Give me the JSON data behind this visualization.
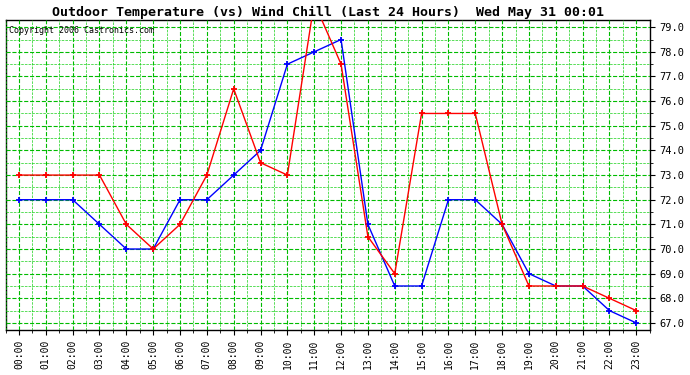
{
  "title": "Outdoor Temperature (vs) Wind Chill (Last 24 Hours)  Wed May 31 00:01",
  "copyright": "Copyright 2006 Castronics.com",
  "hours": [
    "00:00",
    "01:00",
    "02:00",
    "03:00",
    "04:00",
    "05:00",
    "06:00",
    "07:00",
    "08:00",
    "09:00",
    "10:00",
    "11:00",
    "12:00",
    "13:00",
    "14:00",
    "15:00",
    "16:00",
    "17:00",
    "18:00",
    "19:00",
    "20:00",
    "21:00",
    "22:00",
    "23:00"
  ],
  "temp": [
    72.0,
    72.0,
    72.0,
    71.0,
    70.0,
    70.0,
    72.0,
    72.0,
    73.0,
    74.0,
    77.5,
    78.0,
    78.5,
    71.0,
    68.5,
    68.5,
    72.0,
    72.0,
    71.0,
    69.0,
    68.5,
    68.5,
    67.5,
    67.0
  ],
  "wind_chill": [
    73.0,
    73.0,
    73.0,
    73.0,
    71.0,
    70.0,
    71.0,
    73.0,
    76.5,
    73.5,
    73.0,
    80.0,
    77.5,
    70.5,
    69.0,
    75.5,
    75.5,
    75.5,
    71.0,
    68.5,
    68.5,
    68.5,
    68.0,
    67.5
  ],
  "temp_color": "#0000ff",
  "wind_chill_color": "#ff0000",
  "grid_color_major": "#00bb00",
  "grid_color_minor": "#00cc00",
  "bg_color": "#ffffff",
  "plot_bg": "#ffffff",
  "ylim_min": 67.0,
  "ylim_max": 79.0,
  "ytick_step": 1.0
}
